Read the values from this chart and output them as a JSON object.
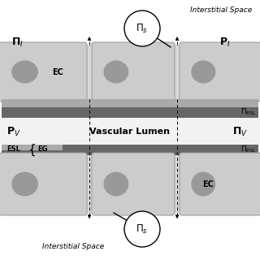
{
  "bg_color": "#ffffff",
  "ec_cell_color": "#cccccc",
  "ec_junction_color": "#d8d8d8",
  "ec_border_color": "#999999",
  "nucleus_color": "#999999",
  "esl_dark_color": "#666666",
  "esl_light_color": "#aaaaaa",
  "lumen_color": "#f2f2f2",
  "interstitial_color": "#e0e0e0",
  "fig_width": 3.2,
  "fig_height": 3.2,
  "dpi": 100,
  "top_label": "Interstitial Space",
  "bottom_label": "Interstitial Space",
  "lumen_label": "Vascular Lumen"
}
